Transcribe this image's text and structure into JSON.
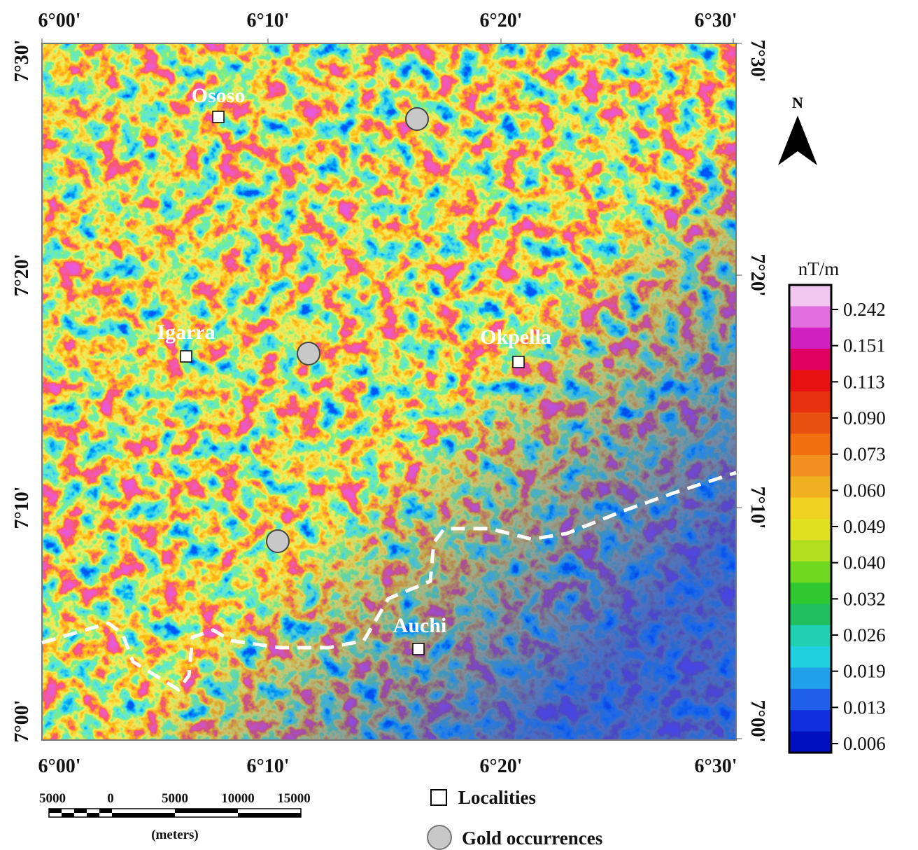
{
  "map": {
    "top_labels": [
      "6°00'",
      "6°10'",
      "6°20'",
      "6°30'"
    ],
    "bottom_labels": [
      "6°00'",
      "6°10'",
      "6°20'",
      "6°30'"
    ],
    "left_labels": [
      "7°30'",
      "7°20'",
      "7°10'",
      "7°00'"
    ],
    "right_labels": [
      "7°30'",
      "7°20'",
      "7°10'",
      "7°00'"
    ],
    "places": [
      {
        "label": "Ososo"
      },
      {
        "label": "Igarra"
      },
      {
        "label": "Okpella"
      },
      {
        "label": "Auchi"
      }
    ],
    "north": "N"
  },
  "colorbar": {
    "unit": "nT/m",
    "labels": [
      "0.242",
      "0.151",
      "0.113",
      "0.090",
      "0.073",
      "0.060",
      "0.049",
      "0.040",
      "0.032",
      "0.026",
      "0.019",
      "0.013",
      "0.006"
    ]
  },
  "scale_bar": {
    "labels": [
      "5000",
      "0",
      "5000",
      "10000",
      "15000"
    ],
    "unit": "(meters)"
  },
  "legend": {
    "items": [
      "Localities",
      "Gold occurrences"
    ]
  }
}
